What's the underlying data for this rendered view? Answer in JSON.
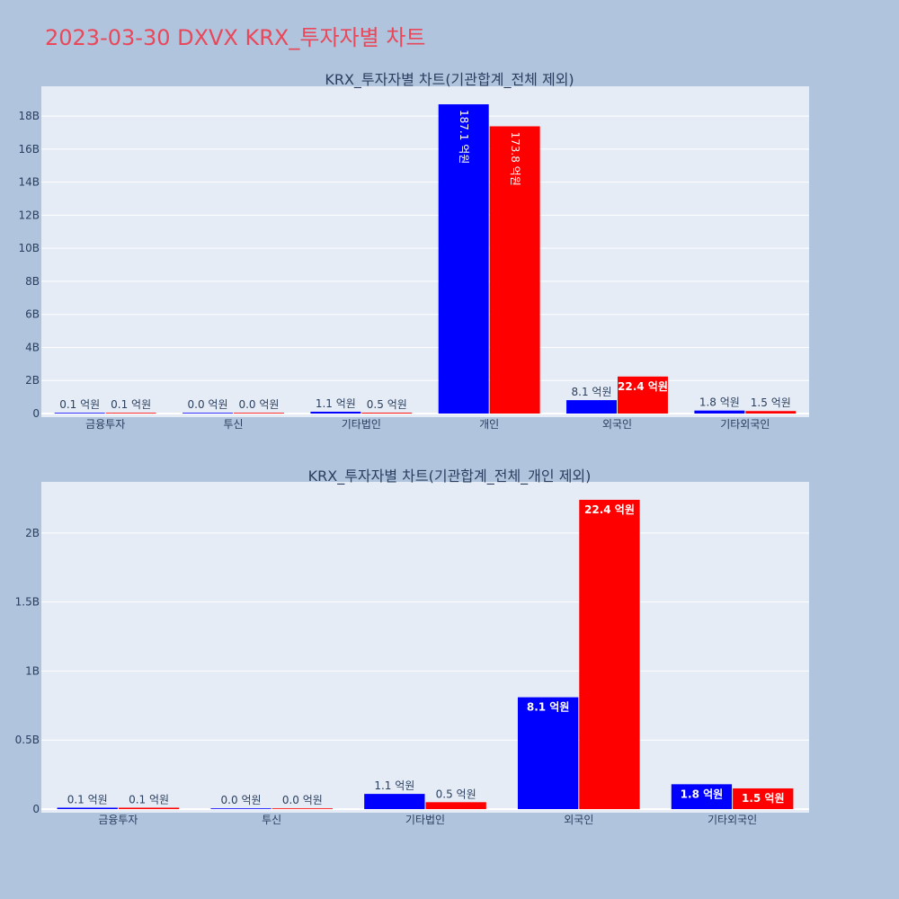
{
  "page": {
    "title": "2023-03-30 DXVX KRX_투자자별 차트"
  },
  "colors": {
    "series_a": "#0000ff",
    "series_b": "#ff0000",
    "plot_bg": "#e5ecf6",
    "page_bg": "#b0c4de",
    "title": "#e8485a"
  },
  "chart_data": [
    {
      "type": "bar",
      "title": "KRX_투자자별 차트(기관합계_전체 제외)",
      "categories": [
        "금융투자",
        "투신",
        "기타법인",
        "개인",
        "외국인",
        "기타외국인"
      ],
      "series": [
        {
          "values": [
            10000000,
            0,
            110000000,
            18710000000,
            810000000,
            180000000
          ],
          "labels": [
            "0.1 억원",
            "0.0 억원",
            "1.1 억원",
            "187.1 억원",
            "8.1 억원",
            "1.8 억원"
          ]
        },
        {
          "values": [
            10000000,
            0,
            50000000,
            17380000000,
            2240000000,
            150000000
          ],
          "labels": [
            "0.1 억원",
            "0.0 억원",
            "0.5 억원",
            "173.8 억원",
            "22.4 억원",
            "1.5 억원"
          ]
        }
      ],
      "ylim": [
        0,
        19800000000
      ],
      "yticks": [
        0,
        2000000000,
        4000000000,
        6000000000,
        8000000000,
        10000000000,
        12000000000,
        14000000000,
        16000000000,
        18000000000
      ],
      "ytick_labels": [
        "0",
        "2B",
        "4B",
        "6B",
        "8B",
        "10B",
        "12B",
        "14B",
        "16B",
        "18B"
      ],
      "grid": true,
      "legend": "none"
    },
    {
      "type": "bar",
      "title": "KRX_투자자별 차트(기관합계_전체_개인 제외)",
      "categories": [
        "금융투자",
        "투신",
        "기타법인",
        "외국인",
        "기타외국인"
      ],
      "series": [
        {
          "values": [
            10000000,
            0,
            110000000,
            810000000,
            180000000
          ],
          "labels": [
            "0.1 억원",
            "0.0 억원",
            "1.1 억원",
            "8.1 억원",
            "1.8 억원"
          ]
        },
        {
          "values": [
            10000000,
            0,
            50000000,
            2240000000,
            150000000
          ],
          "labels": [
            "0.1 억원",
            "0.0 억원",
            "0.5 억원",
            "22.4 억원",
            "1.5 억원"
          ]
        }
      ],
      "ylim": [
        0,
        2370000000
      ],
      "yticks": [
        0,
        500000000,
        1000000000,
        1500000000,
        2000000000
      ],
      "ytick_labels": [
        "0",
        "0.5B",
        "1B",
        "1.5B",
        "2B"
      ],
      "grid": true,
      "legend": "none"
    }
  ]
}
